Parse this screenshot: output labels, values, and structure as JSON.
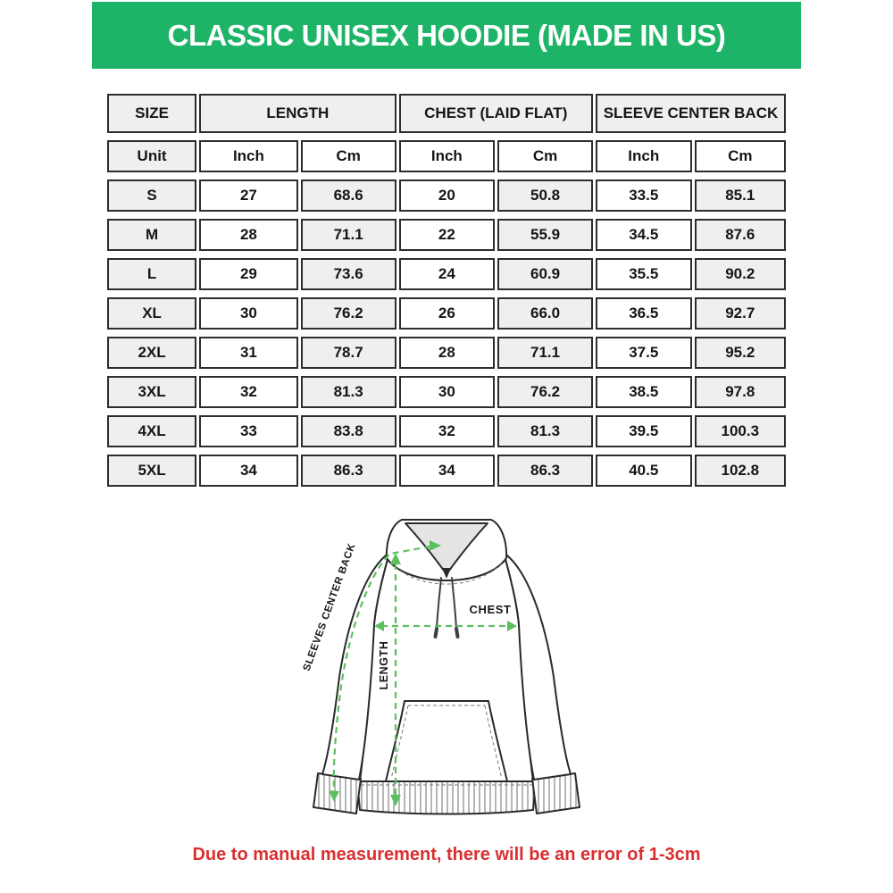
{
  "colors": {
    "banner-green": "#1eb468",
    "arrow-green": "#5bbf60",
    "note-red": "#da2f2f",
    "cell-gray": "#efefef",
    "table-border": "#2d2d2d"
  },
  "banner": {
    "title": "CLASSIC UNISEX HOODIE (MADE IN US)"
  },
  "table": {
    "groups": [
      {
        "label": "SIZE"
      },
      {
        "label": "LENGTH"
      },
      {
        "label": "CHEST (LAID FLAT)"
      },
      {
        "label": "SLEEVE CENTER BACK"
      }
    ],
    "unit_row": [
      "Unit",
      "Inch",
      "Cm",
      "Inch",
      "Cm",
      "Inch",
      "Cm"
    ],
    "rows": [
      {
        "size": "S",
        "values": [
          "27",
          "68.6",
          "20",
          "50.8",
          "33.5",
          "85.1"
        ]
      },
      {
        "size": "M",
        "values": [
          "28",
          "71.1",
          "22",
          "55.9",
          "34.5",
          "87.6"
        ]
      },
      {
        "size": "L",
        "values": [
          "29",
          "73.6",
          "24",
          "60.9",
          "35.5",
          "90.2"
        ]
      },
      {
        "size": "XL",
        "values": [
          "30",
          "76.2",
          "26",
          "66.0",
          "36.5",
          "92.7"
        ]
      },
      {
        "size": "2XL",
        "values": [
          "31",
          "78.7",
          "28",
          "71.1",
          "37.5",
          "95.2"
        ]
      },
      {
        "size": "3XL",
        "values": [
          "32",
          "81.3",
          "30",
          "76.2",
          "38.5",
          "97.8"
        ]
      },
      {
        "size": "4XL",
        "values": [
          "33",
          "83.8",
          "32",
          "81.3",
          "39.5",
          "100.3"
        ]
      },
      {
        "size": "5XL",
        "values": [
          "34",
          "86.3",
          "34",
          "86.3",
          "40.5",
          "102.8"
        ]
      }
    ]
  },
  "diagram": {
    "sleeve_label": "SLEEVES CENTER BACK",
    "chest_label": "CHEST",
    "length_label": "LENGTH"
  },
  "note": {
    "text": "Due to manual measurement, there will be an error of 1-3cm"
  }
}
